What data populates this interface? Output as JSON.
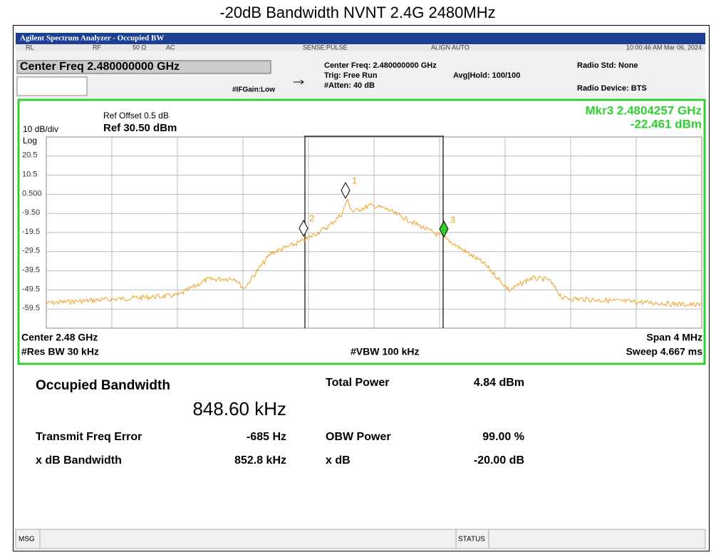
{
  "header": {
    "title": "-20dB Bandwidth NVNT 2.4G 2480MHz"
  },
  "window": {
    "title": "Agilent Spectrum Analyzer - Occupied BW"
  },
  "status_bar": {
    "rl": "RL",
    "rf": "RF",
    "impedance": "50 Ω",
    "coupling": "AC",
    "sense": "SENSE:PULSE",
    "align": "ALIGN AUTO",
    "datetime": "10:00:46 AM Mar 06, 2024"
  },
  "settings": {
    "center_freq_box": "Center Freq 2.480000000 GHz",
    "center_freq": "Center Freq: 2.480000000 GHz",
    "trig": "Trig: Free Run",
    "atten": "#Atten: 40 dB",
    "avg_hold": "Avg|Hold: 100/100",
    "ifgain": "#IFGain:Low",
    "radio_std": "Radio Std: None",
    "radio_device": "Radio Device: BTS"
  },
  "plot": {
    "ref_offset": "Ref Offset 0.5 dB",
    "scale": "10 dB/div",
    "ref_level": "Ref 30.50 dBm",
    "log": "Log",
    "marker_freq": "Mkr3  2.4804257 GHz",
    "marker_level": "-22.461 dBm",
    "y_labels": [
      "20.5",
      "10.5",
      "0.500",
      "-9.50",
      "-19.5",
      "-29.5",
      "-39.5",
      "-49.5",
      "-59.5"
    ],
    "marker_labels": [
      "1",
      "2",
      "3"
    ],
    "center": "Center  2.48 GHz",
    "span": "Span 4 MHz",
    "res_bw": "#Res BW  30 kHz",
    "vbw": "#VBW  100 kHz",
    "sweep": "Sweep  4.667 ms"
  },
  "results": {
    "obw_label": "Occupied Bandwidth",
    "obw_value": "848.60 kHz",
    "total_power_label": "Total Power",
    "total_power_value": "4.84 dBm",
    "tfe_label": "Transmit Freq Error",
    "tfe_value": "-685 Hz",
    "obw_power_label": "OBW Power",
    "obw_power_value": "99.00 %",
    "xdb_bw_label": "x dB Bandwidth",
    "xdb_bw_value": "852.8 kHz",
    "xdb_label": "x dB",
    "xdb_value": "-20.00 dB"
  },
  "footer": {
    "msg": "MSG",
    "status": "STATUS"
  }
}
